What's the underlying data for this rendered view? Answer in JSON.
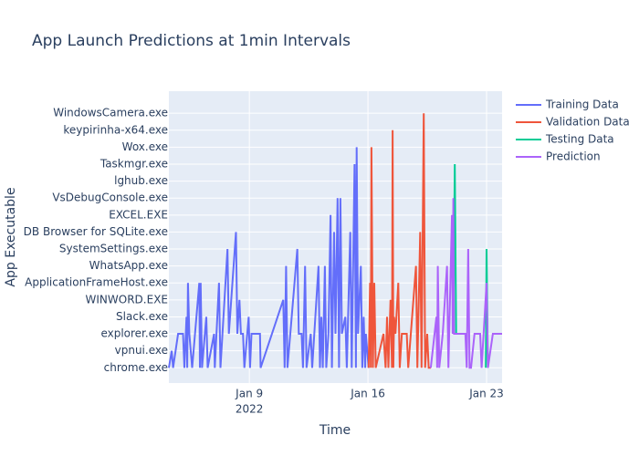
{
  "chart_data": {
    "type": "line",
    "title": "App Launch Predictions at 1min Intervals",
    "xlabel": "Time",
    "ylabel": "App Executable",
    "ycategories": [
      "chrome.exe",
      "vpnui.exe",
      "explorer.exe",
      "Slack.exe",
      "WINWORD.EXE",
      "ApplicationFrameHost.exe",
      "WhatsApp.exe",
      "SystemSettings.exe",
      "DB Browser for SQLite.exe",
      "EXCEL.EXE",
      "VsDebugConsole.exe",
      "lghub.exe",
      "Taskmgr.exe",
      "Wox.exe",
      "keypirinha-x64.exe",
      "WindowsCamera.exe"
    ],
    "ylim": [
      -0.9,
      16.3
    ],
    "xlim": [
      "2022-01-04T06:00",
      "2022-01-23T22:00"
    ],
    "xticks": [
      {
        "value": "2022-01-09T00:00",
        "label": "Jan 9"
      },
      {
        "value": "2022-01-16T00:00",
        "label": "Jan 16"
      },
      {
        "value": "2022-01-23T00:00",
        "label": "Jan 23"
      }
    ],
    "x_year": "2022",
    "grid": true,
    "legend_position": "right",
    "series": [
      {
        "name": "Training Data",
        "color": "#636efa",
        "x": [
          "2022-01-04T06:00",
          "2022-01-04T10:00",
          "2022-01-04T12:00",
          "2022-01-04T19:00",
          "2022-01-05T02:00",
          "2022-01-05T04:00",
          "2022-01-05T07:00",
          "2022-01-05T08:00",
          "2022-01-05T09:00",
          "2022-01-05T11:00",
          "2022-01-05T15:00",
          "2022-01-06T01:00",
          "2022-01-06T02:00",
          "2022-01-06T03:00",
          "2022-01-06T05:00",
          "2022-01-06T11:00",
          "2022-01-06T13:00",
          "2022-01-06T22:00",
          "2022-01-06T23:00",
          "2022-01-07T05:00",
          "2022-01-07T07:00",
          "2022-01-07T17:00",
          "2022-01-07T19:00",
          "2022-01-08T05:00",
          "2022-01-08T07:00",
          "2022-01-08T10:00",
          "2022-01-08T12:00",
          "2022-01-08T15:00",
          "2022-01-08T17:00",
          "2022-01-08T23:00",
          "2022-01-09T01:00",
          "2022-01-09T03:00",
          "2022-01-09T15:00",
          "2022-01-09T16:00",
          "2022-01-11T00:00",
          "2022-01-11T02:00",
          "2022-01-11T04:00",
          "2022-01-11T06:00",
          "2022-01-11T10:00",
          "2022-01-11T20:00",
          "2022-01-11T22:00",
          "2022-01-12T02:00",
          "2022-01-12T04:00",
          "2022-01-12T07:00",
          "2022-01-12T09:00",
          "2022-01-12T15:00",
          "2022-01-12T17:00",
          "2022-01-13T02:00",
          "2022-01-13T04:00",
          "2022-01-13T06:00",
          "2022-01-13T08:00",
          "2022-01-13T11:00",
          "2022-01-13T13:00",
          "2022-01-13T16:00",
          "2022-01-13T19:00",
          "2022-01-13T21:00",
          "2022-01-14T00:00",
          "2022-01-14T02:00",
          "2022-01-14T05:00",
          "2022-01-14T07:00",
          "2022-01-14T09:00",
          "2022-01-14T11:00",
          "2022-01-14T16:00",
          "2022-01-14T18:00",
          "2022-01-14T23:00",
          "2022-01-15T01:00",
          "2022-01-15T05:00",
          "2022-01-15T07:00",
          "2022-01-15T08:00",
          "2022-01-15T10:00",
          "2022-01-15T14:00",
          "2022-01-15T16:00",
          "2022-01-15T18:00",
          "2022-01-15T20:00",
          "2022-01-15T21:00",
          "2022-01-16T01:00"
        ],
        "values": [
          "chrome.exe",
          "vpnui.exe",
          "chrome.exe",
          "explorer.exe",
          "explorer.exe",
          "chrome.exe",
          "Slack.exe",
          "chrome.exe",
          "ApplicationFrameHost.exe",
          "explorer.exe",
          "chrome.exe",
          "ApplicationFrameHost.exe",
          "chrome.exe",
          "ApplicationFrameHost.exe",
          "chrome.exe",
          "Slack.exe",
          "chrome.exe",
          "explorer.exe",
          "chrome.exe",
          "ApplicationFrameHost.exe",
          "chrome.exe",
          "SystemSettings.exe",
          "explorer.exe",
          "DB Browser for SQLite.exe",
          "explorer.exe",
          "WINWORD.EXE",
          "explorer.exe",
          "explorer.exe",
          "chrome.exe",
          "Slack.exe",
          "chrome.exe",
          "explorer.exe",
          "explorer.exe",
          "chrome.exe",
          "WINWORD.EXE",
          "chrome.exe",
          "WhatsApp.exe",
          "chrome.exe",
          "explorer.exe",
          "SystemSettings.exe",
          "explorer.exe",
          "explorer.exe",
          "chrome.exe",
          "WhatsApp.exe",
          "chrome.exe",
          "explorer.exe",
          "chrome.exe",
          "WhatsApp.exe",
          "chrome.exe",
          "Slack.exe",
          "chrome.exe",
          "WhatsApp.exe",
          "chrome.exe",
          "explorer.exe",
          "EXCEL.EXE",
          "chrome.exe",
          "DB Browser for SQLite.exe",
          "explorer.exe",
          "VsDebugConsole.exe",
          "chrome.exe",
          "VsDebugConsole.exe",
          "explorer.exe",
          "Slack.exe",
          "chrome.exe",
          "DB Browser for SQLite.exe",
          "chrome.exe",
          "Taskmgr.exe",
          "chrome.exe",
          "Wox.exe",
          "explorer.exe",
          "WhatsApp.exe",
          "chrome.exe",
          "Slack.exe",
          "chrome.exe",
          "explorer.exe",
          "chrome.exe"
        ]
      },
      {
        "name": "Validation Data",
        "color": "#ef553b",
        "x": [
          "2022-01-16T01:00",
          "2022-01-16T03:00",
          "2022-01-16T04:00",
          "2022-01-16T05:00",
          "2022-01-16T07:00",
          "2022-01-16T09:00",
          "2022-01-16T11:00",
          "2022-01-16T22:00",
          "2022-01-17T01:00",
          "2022-01-17T03:00",
          "2022-01-17T05:00",
          "2022-01-17T08:00",
          "2022-01-17T10:00",
          "2022-01-17T11:00",
          "2022-01-17T12:00",
          "2022-01-17T13:00",
          "2022-01-17T15:00",
          "2022-01-17T19:00",
          "2022-01-17T21:00",
          "2022-01-18T00:00",
          "2022-01-18T07:00",
          "2022-01-18T09:00",
          "2022-01-18T20:00",
          "2022-01-18T22:00",
          "2022-01-19T02:00",
          "2022-01-19T04:00",
          "2022-01-19T07:00",
          "2022-01-19T09:00",
          "2022-01-19T12:00",
          "2022-01-19T14:00",
          "2022-01-19T17:00"
        ],
        "values": [
          "chrome.exe",
          "ApplicationFrameHost.exe",
          "chrome.exe",
          "Wox.exe",
          "chrome.exe",
          "ApplicationFrameHost.exe",
          "chrome.exe",
          "explorer.exe",
          "chrome.exe",
          "Slack.exe",
          "chrome.exe",
          "WINWORD.EXE",
          "chrome.exe",
          "keypirinha-x64.exe",
          "chrome.exe",
          "Slack.exe",
          "explorer.exe",
          "ApplicationFrameHost.exe",
          "chrome.exe",
          "explorer.exe",
          "explorer.exe",
          "chrome.exe",
          "WhatsApp.exe",
          "chrome.exe",
          "DB Browser for SQLite.exe",
          "chrome.exe",
          "WindowsCamera.exe",
          "chrome.exe",
          "explorer.exe",
          "chrome.exe",
          "chrome.exe"
        ]
      },
      {
        "name": "Testing Data",
        "color": "#00cc96",
        "x": [
          "2022-01-21T01:00",
          "2022-01-21T03:00",
          "2022-01-21T05:00",
          "2022-01-22T00:00",
          "2022-01-22T23:00",
          "2022-01-23T00:00",
          "2022-01-23T02:00"
        ],
        "values": [
          "explorer.exe",
          "Taskmgr.exe",
          "explorer.exe",
          null,
          "chrome.exe",
          "SystemSettings.exe",
          "chrome.exe"
        ]
      },
      {
        "name": "Prediction",
        "color": "#ab63fa",
        "x": [
          "2022-01-19T17:00",
          "2022-01-20T01:00",
          "2022-01-20T02:00",
          "2022-01-20T03:00",
          "2022-01-20T05:00",
          "2022-01-20T10:00",
          "2022-01-20T16:00",
          "2022-01-20T18:00",
          "2022-01-20T23:00",
          "2022-01-21T00:00",
          "2022-01-21T01:00",
          "2022-01-21T02:00",
          "2022-01-21T05:00",
          "2022-01-21T18:00",
          "2022-01-21T20:00",
          "2022-01-21T22:00",
          "2022-01-22T00:00",
          "2022-01-22T02:00",
          "2022-01-22T07:00",
          "2022-01-22T15:00",
          "2022-01-22T17:00",
          "2022-01-23T00:00",
          "2022-01-23T02:00",
          "2022-01-23T09:00",
          "2022-01-23T22:00"
        ],
        "values": [
          "chrome.exe",
          "Slack.exe",
          "chrome.exe",
          "WhatsApp.exe",
          "chrome.exe",
          "explorer.exe",
          "WhatsApp.exe",
          "chrome.exe",
          "EXCEL.EXE",
          "explorer.exe",
          "VsDebugConsole.exe",
          "explorer.exe",
          "explorer.exe",
          "explorer.exe",
          "chrome.exe",
          "SystemSettings.exe",
          "chrome.exe",
          "chrome.exe",
          "explorer.exe",
          "explorer.exe",
          "chrome.exe",
          "ApplicationFrameHost.exe",
          "chrome.exe",
          "explorer.exe",
          "explorer.exe"
        ]
      }
    ]
  }
}
